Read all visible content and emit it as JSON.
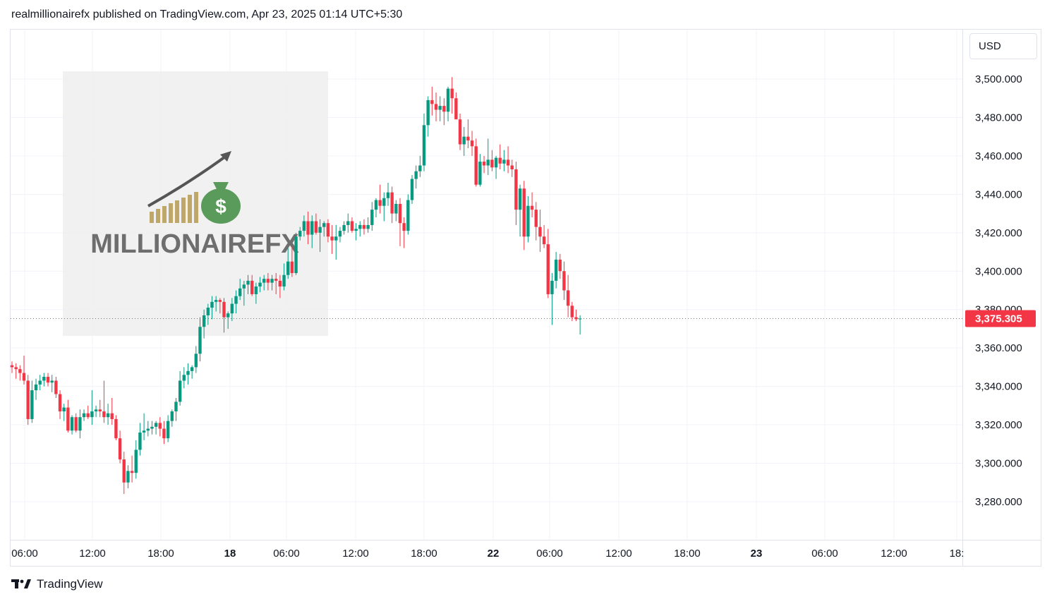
{
  "header": {
    "publisher_line": "realmillionairefx published on TradingView.com, Apr 23, 2025 01:14 UTC+5:30"
  },
  "currency": "USD",
  "footer": {
    "brand": "TradingView"
  },
  "watermark": {
    "text": "MILLIONAIREFX",
    "icon": "money-bag-dollar-icon"
  },
  "colors": {
    "up": "#089981",
    "down": "#f23645",
    "price_label_bg": "#f23645",
    "grid": "#f0f3fa"
  },
  "chart_data": {
    "type": "candlestick",
    "last_price": 3375.305,
    "last_price_label": "3,375.305",
    "y_ticks": [
      {
        "value": 3500,
        "label": "3,500.000"
      },
      {
        "value": 3480,
        "label": "3,480.000"
      },
      {
        "value": 3460,
        "label": "3,460.000"
      },
      {
        "value": 3440,
        "label": "3,440.000"
      },
      {
        "value": 3420,
        "label": "3,420.000"
      },
      {
        "value": 3400,
        "label": "3,400.000"
      },
      {
        "value": 3380,
        "label": "3,380.000"
      },
      {
        "value": 3360,
        "label": "3,360.000"
      },
      {
        "value": 3340,
        "label": "3,340.000"
      },
      {
        "value": 3320,
        "label": "3,320.000"
      },
      {
        "value": 3300,
        "label": "3,300.000"
      },
      {
        "value": 3280,
        "label": "3,280.000"
      }
    ],
    "x_ticks": [
      {
        "label": "06:00",
        "bold": false
      },
      {
        "label": "12:00",
        "bold": false
      },
      {
        "label": "18:00",
        "bold": false
      },
      {
        "label": "18",
        "bold": true
      },
      {
        "label": "06:00",
        "bold": false
      },
      {
        "label": "12:00",
        "bold": false
      },
      {
        "label": "18:00",
        "bold": false
      },
      {
        "label": "22",
        "bold": true
      },
      {
        "label": "06:00",
        "bold": false
      },
      {
        "label": "12:00",
        "bold": false
      },
      {
        "label": "18:00",
        "bold": false
      },
      {
        "label": "23",
        "bold": true
      },
      {
        "label": "06:00",
        "bold": false
      },
      {
        "label": "12:00",
        "bold": false
      },
      {
        "label": "18:",
        "bold": false
      }
    ],
    "candle_interval": "1h",
    "candles": [
      [
        3351,
        3353,
        3347,
        3350
      ],
      [
        3350,
        3352,
        3344,
        3349
      ],
      [
        3349,
        3351,
        3343,
        3347
      ],
      [
        3347,
        3356,
        3341,
        3343
      ],
      [
        3343,
        3346,
        3320,
        3323
      ],
      [
        3323,
        3343,
        3321,
        3338
      ],
      [
        3338,
        3344,
        3333,
        3341
      ],
      [
        3341,
        3346,
        3338,
        3343
      ],
      [
        3343,
        3347,
        3340,
        3345
      ],
      [
        3345,
        3347,
        3340,
        3342
      ],
      [
        3342,
        3346,
        3337,
        3343
      ],
      [
        3343,
        3345,
        3334,
        3336
      ],
      [
        3336,
        3338,
        3323,
        3327
      ],
      [
        3327,
        3331,
        3322,
        3329
      ],
      [
        3329,
        3333,
        3316,
        3317
      ],
      [
        3317,
        3325,
        3315,
        3324
      ],
      [
        3324,
        3326,
        3316,
        3317
      ],
      [
        3317,
        3328,
        3313,
        3324
      ],
      [
        3324,
        3328,
        3322,
        3326
      ],
      [
        3326,
        3330,
        3323,
        3324
      ],
      [
        3324,
        3338,
        3320,
        3327
      ],
      [
        3327,
        3330,
        3324,
        3328
      ],
      [
        3328,
        3333,
        3324,
        3327
      ],
      [
        3327,
        3343,
        3321,
        3324
      ],
      [
        3324,
        3331,
        3320,
        3326
      ],
      [
        3326,
        3334,
        3320,
        3323
      ],
      [
        3323,
        3325,
        3312,
        3313
      ],
      [
        3313,
        3317,
        3300,
        3302
      ],
      [
        3302,
        3306,
        3284,
        3290
      ],
      [
        3290,
        3299,
        3287,
        3296
      ],
      [
        3296,
        3304,
        3290,
        3295
      ],
      [
        3295,
        3312,
        3292,
        3307
      ],
      [
        3307,
        3321,
        3304,
        3316
      ],
      [
        3316,
        3326,
        3312,
        3317
      ],
      [
        3317,
        3322,
        3314,
        3318
      ],
      [
        3318,
        3322,
        3315,
        3319
      ],
      [
        3319,
        3322,
        3315,
        3321
      ],
      [
        3321,
        3324,
        3314,
        3318
      ],
      [
        3318,
        3322,
        3310,
        3313
      ],
      [
        3313,
        3325,
        3311,
        3322
      ],
      [
        3322,
        3328,
        3319,
        3327
      ],
      [
        3327,
        3334,
        3322,
        3332
      ],
      [
        3332,
        3348,
        3330,
        3343
      ],
      [
        3343,
        3350,
        3339,
        3346
      ],
      [
        3346,
        3352,
        3341,
        3348
      ],
      [
        3348,
        3351,
        3344,
        3350
      ],
      [
        3350,
        3361,
        3347,
        3357
      ],
      [
        3357,
        3376,
        3353,
        3371
      ],
      [
        3371,
        3380,
        3365,
        3377
      ],
      [
        3377,
        3383,
        3372,
        3381
      ],
      [
        3381,
        3387,
        3375,
        3384
      ],
      [
        3384,
        3387,
        3379,
        3385
      ],
      [
        3385,
        3386,
        3378,
        3384
      ],
      [
        3384,
        3386,
        3368,
        3376
      ],
      [
        3376,
        3379,
        3370,
        3378
      ],
      [
        3378,
        3386,
        3374,
        3383
      ],
      [
        3383,
        3390,
        3378,
        3387
      ],
      [
        3387,
        3396,
        3385,
        3391
      ],
      [
        3391,
        3395,
        3382,
        3393
      ],
      [
        3393,
        3398,
        3388,
        3395
      ],
      [
        3395,
        3398,
        3387,
        3388
      ],
      [
        3388,
        3394,
        3383,
        3392
      ],
      [
        3392,
        3397,
        3389,
        3394
      ],
      [
        3394,
        3398,
        3390,
        3396
      ],
      [
        3396,
        3399,
        3390,
        3394
      ],
      [
        3394,
        3398,
        3390,
        3396
      ],
      [
        3396,
        3399,
        3388,
        3395
      ],
      [
        3395,
        3398,
        3386,
        3392
      ],
      [
        3392,
        3404,
        3390,
        3398
      ],
      [
        3398,
        3412,
        3396,
        3405
      ],
      [
        3405,
        3413,
        3397,
        3399
      ],
      [
        3399,
        3420,
        3398,
        3418
      ],
      [
        3418,
        3423,
        3416,
        3421
      ],
      [
        3421,
        3429,
        3418,
        3426
      ],
      [
        3426,
        3431,
        3414,
        3419
      ],
      [
        3419,
        3429,
        3412,
        3426
      ],
      [
        3426,
        3430,
        3419,
        3420
      ],
      [
        3420,
        3427,
        3410,
        3423
      ],
      [
        3423,
        3426,
        3418,
        3425
      ],
      [
        3425,
        3427,
        3415,
        3418
      ],
      [
        3418,
        3424,
        3409,
        3416
      ],
      [
        3416,
        3424,
        3406,
        3418
      ],
      [
        3418,
        3423,
        3415,
        3421
      ],
      [
        3421,
        3426,
        3419,
        3424
      ],
      [
        3424,
        3430,
        3420,
        3426
      ],
      [
        3426,
        3428,
        3420,
        3421
      ],
      [
        3421,
        3425,
        3416,
        3422
      ],
      [
        3422,
        3426,
        3418,
        3424
      ],
      [
        3424,
        3427,
        3419,
        3422
      ],
      [
        3422,
        3428,
        3420,
        3424
      ],
      [
        3424,
        3436,
        3421,
        3432
      ],
      [
        3432,
        3438,
        3428,
        3437
      ],
      [
        3437,
        3445,
        3430,
        3434
      ],
      [
        3434,
        3441,
        3426,
        3438
      ],
      [
        3438,
        3446,
        3434,
        3441
      ],
      [
        3441,
        3444,
        3425,
        3430
      ],
      [
        3430,
        3437,
        3426,
        3435
      ],
      [
        3435,
        3438,
        3413,
        3425
      ],
      [
        3425,
        3428,
        3412,
        3421
      ],
      [
        3421,
        3440,
        3419,
        3437
      ],
      [
        3437,
        3450,
        3435,
        3448
      ],
      [
        3448,
        3455,
        3443,
        3452
      ],
      [
        3452,
        3460,
        3449,
        3455
      ],
      [
        3455,
        3482,
        3452,
        3476
      ],
      [
        3476,
        3491,
        3470,
        3489
      ],
      [
        3489,
        3496,
        3481,
        3487
      ],
      [
        3487,
        3493,
        3478,
        3484
      ],
      [
        3484,
        3491,
        3478,
        3486
      ],
      [
        3486,
        3490,
        3476,
        3483
      ],
      [
        3483,
        3496,
        3478,
        3495
      ],
      [
        3495,
        3501,
        3482,
        3490
      ],
      [
        3490,
        3493,
        3480,
        3479
      ],
      [
        3479,
        3482,
        3463,
        3466
      ],
      [
        3466,
        3475,
        3460,
        3470
      ],
      [
        3470,
        3479,
        3464,
        3468
      ],
      [
        3468,
        3473,
        3460,
        3465
      ],
      [
        3465,
        3469,
        3444,
        3445
      ],
      [
        3445,
        3461,
        3444,
        3457
      ],
      [
        3457,
        3460,
        3451,
        3455
      ],
      [
        3455,
        3469,
        3450,
        3458
      ],
      [
        3458,
        3463,
        3452,
        3454
      ],
      [
        3454,
        3460,
        3448,
        3459
      ],
      [
        3459,
        3466,
        3453,
        3456
      ],
      [
        3456,
        3463,
        3452,
        3458
      ],
      [
        3458,
        3465,
        3451,
        3455
      ],
      [
        3455,
        3458,
        3449,
        3453
      ],
      [
        3453,
        3457,
        3424,
        3432
      ],
      [
        3432,
        3445,
        3418,
        3443
      ],
      [
        3443,
        3447,
        3411,
        3418
      ],
      [
        3418,
        3439,
        3415,
        3434
      ],
      [
        3434,
        3441,
        3428,
        3432
      ],
      [
        3432,
        3436,
        3416,
        3423
      ],
      [
        3423,
        3432,
        3410,
        3418
      ],
      [
        3418,
        3424,
        3412,
        3414
      ],
      [
        3414,
        3422,
        3386,
        3388
      ],
      [
        3388,
        3399,
        3372,
        3395
      ],
      [
        3395,
        3410,
        3391,
        3406
      ],
      [
        3406,
        3409,
        3396,
        3400
      ],
      [
        3400,
        3405,
        3385,
        3390
      ],
      [
        3390,
        3398,
        3376,
        3382
      ],
      [
        3382,
        3384,
        3374,
        3376
      ],
      [
        3376,
        3380,
        3374,
        3375
      ],
      [
        3375,
        3377,
        3367,
        3375.3
      ]
    ]
  }
}
